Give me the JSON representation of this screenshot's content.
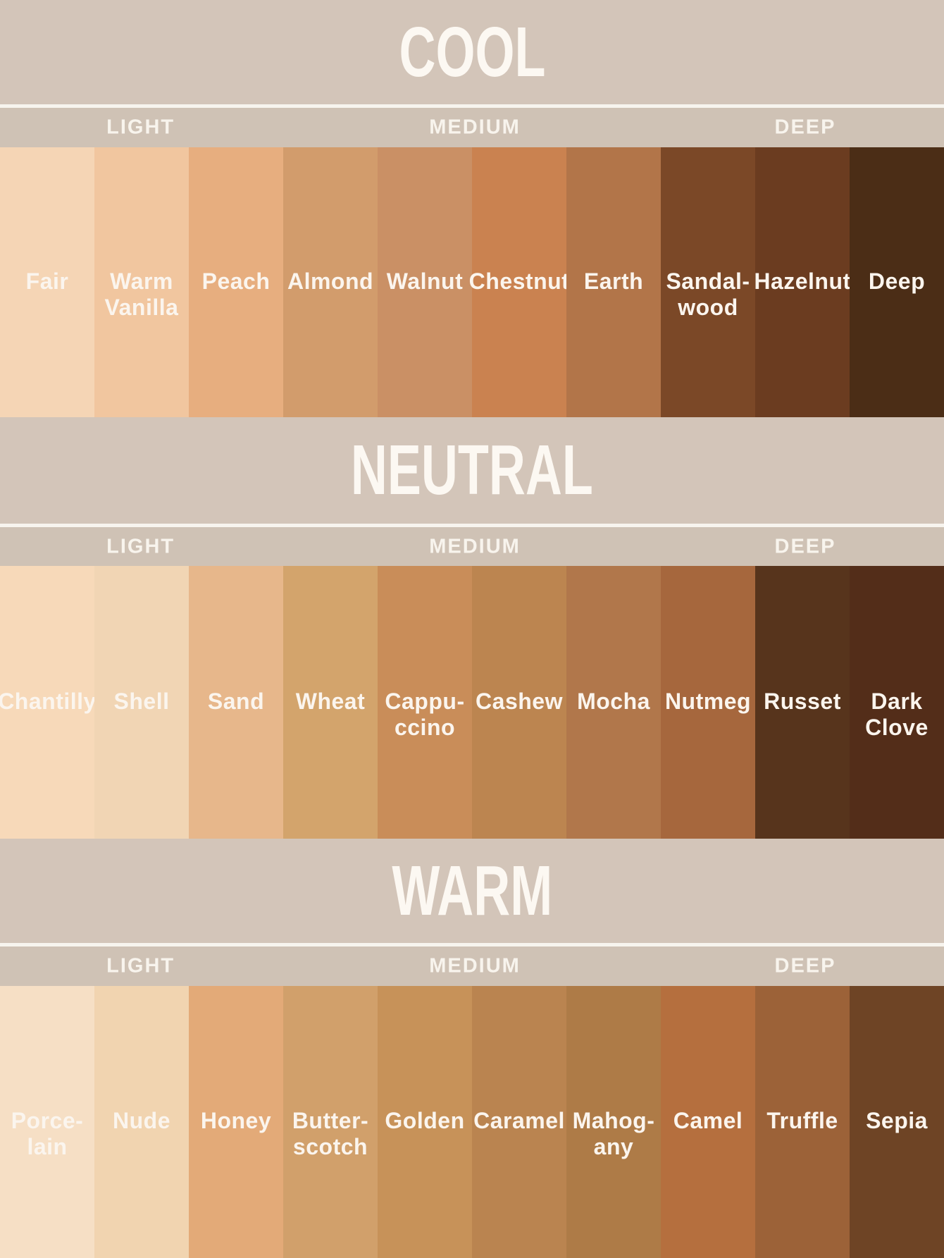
{
  "chart_data": {
    "type": "table",
    "description_labels": {
      "undertone_rows": [
        "COOL",
        "NEUTRAL",
        "WARM"
      ],
      "depth_columns": [
        "LIGHT",
        "MEDIUM",
        "DEEP"
      ]
    },
    "sections": [
      {
        "title": "COOL",
        "depth_labels": [
          "LIGHT",
          "MEDIUM",
          "DEEP"
        ],
        "swatches": [
          {
            "name": "Fair",
            "color": "#f5d5b5"
          },
          {
            "name": "Warm\nVanilla",
            "color": "#f1c69f"
          },
          {
            "name": "Peach",
            "color": "#e7ae7f"
          },
          {
            "name": "Almond",
            "color": "#d29c6c"
          },
          {
            "name": "Walnut",
            "color": "#ca9065"
          },
          {
            "name": "Chestnut",
            "color": "#ca8250"
          },
          {
            "name": "Earth",
            "color": "#b27549"
          },
          {
            "name": "Sandal-\nwood",
            "color": "#7b4827"
          },
          {
            "name": "Hazelnut",
            "color": "#6b3c20"
          },
          {
            "name": "Deep",
            "color": "#4b2d16"
          }
        ]
      },
      {
        "title": "NEUTRAL",
        "depth_labels": [
          "LIGHT",
          "MEDIUM",
          "DEEP"
        ],
        "swatches": [
          {
            "name": "Chantilly",
            "color": "#f7d9b9"
          },
          {
            "name": "Shell",
            "color": "#f1d5b4"
          },
          {
            "name": "Sand",
            "color": "#e7b78b"
          },
          {
            "name": "Wheat",
            "color": "#d3a46c"
          },
          {
            "name": "Cappu-\nccino",
            "color": "#c98d59"
          },
          {
            "name": "Cashew",
            "color": "#bc8550"
          },
          {
            "name": "Mocha",
            "color": "#b1774b"
          },
          {
            "name": "Nutmeg",
            "color": "#a6673d"
          },
          {
            "name": "Russet",
            "color": "#57341c"
          },
          {
            "name": "Dark\nClove",
            "color": "#532d19"
          }
        ]
      },
      {
        "title": "WARM",
        "depth_labels": [
          "LIGHT",
          "MEDIUM",
          "DEEP"
        ],
        "swatches": [
          {
            "name": "Porce-\nlain",
            "color": "#f6dfc5"
          },
          {
            "name": "Nude",
            "color": "#f1d4b0"
          },
          {
            "name": "Honey",
            "color": "#e3aa78"
          },
          {
            "name": "Butter-\nscotch",
            "color": "#d1a06b"
          },
          {
            "name": "Golden",
            "color": "#c79259"
          },
          {
            "name": "Caramel",
            "color": "#ba8450"
          },
          {
            "name": "Mahog-\nany",
            "color": "#ae7b47"
          },
          {
            "name": "Camel",
            "color": "#b56f3e"
          },
          {
            "name": "Truffle",
            "color": "#9c6238"
          },
          {
            "name": "Sepia",
            "color": "#6e4425"
          }
        ]
      }
    ]
  },
  "colors": {
    "header_band_bg": "#d3c5b9",
    "depth_bar_bg": "#cfc2b5",
    "divider": "#f7f4ee",
    "title_text": "#fcf8f2",
    "label_text": "#fbf5ee"
  }
}
